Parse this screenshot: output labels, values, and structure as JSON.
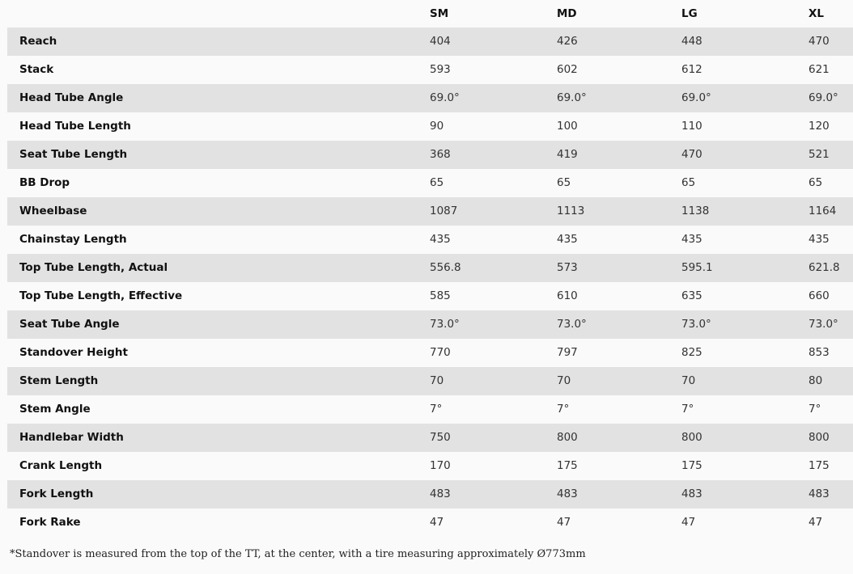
{
  "columns": [
    "SM",
    "MD",
    "LG",
    "XL"
  ],
  "rows": [
    {
      "label": "Reach",
      "values": [
        "404",
        "426",
        "448",
        "470"
      ]
    },
    {
      "label": "Stack",
      "values": [
        "593",
        "602",
        "612",
        "621"
      ]
    },
    {
      "label": "Head Tube Angle",
      "values": [
        "69.0°",
        "69.0°",
        "69.0°",
        "69.0°"
      ]
    },
    {
      "label": "Head Tube Length",
      "values": [
        "90",
        "100",
        "110",
        "120"
      ]
    },
    {
      "label": "Seat Tube Length",
      "values": [
        "368",
        "419",
        "470",
        "521"
      ]
    },
    {
      "label": "BB Drop",
      "values": [
        "65",
        "65",
        "65",
        "65"
      ]
    },
    {
      "label": "Wheelbase",
      "values": [
        "1087",
        "1113",
        "1138",
        "1164"
      ]
    },
    {
      "label": "Chainstay Length",
      "values": [
        "435",
        "435",
        "435",
        "435"
      ]
    },
    {
      "label": "Top Tube Length, Actual",
      "values": [
        "556.8",
        "573",
        "595.1",
        "621.8"
      ]
    },
    {
      "label": "Top Tube Length, Effective",
      "values": [
        "585",
        "610",
        "635",
        "660"
      ]
    },
    {
      "label": "Seat Tube Angle",
      "values": [
        "73.0°",
        "73.0°",
        "73.0°",
        "73.0°"
      ]
    },
    {
      "label": "Standover Height",
      "values": [
        "770",
        "797",
        "825",
        "853"
      ]
    },
    {
      "label": "Stem Length",
      "values": [
        "70",
        "70",
        "70",
        "80"
      ]
    },
    {
      "label": "Stem Angle",
      "values": [
        "7°",
        "7°",
        "7°",
        "7°"
      ]
    },
    {
      "label": "Handlebar Width",
      "values": [
        "750",
        "800",
        "800",
        "800"
      ]
    },
    {
      "label": "Crank Length",
      "values": [
        "170",
        "175",
        "175",
        "175"
      ]
    },
    {
      "label": "Fork Length",
      "values": [
        "483",
        "483",
        "483",
        "483"
      ]
    },
    {
      "label": "Fork Rake",
      "values": [
        "47",
        "47",
        "47",
        "47"
      ]
    }
  ],
  "footnote": "*Standover is measured from the top of the TT, at the center, with a tire measuring approximately Ø773mm",
  "colors": {
    "stripe": "#e2e2e2",
    "background": "#fafafa"
  }
}
